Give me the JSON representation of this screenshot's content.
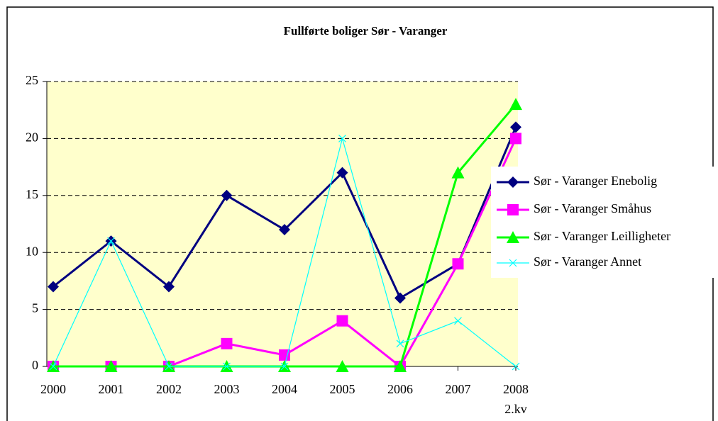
{
  "chart_data": {
    "type": "line",
    "title": "Fullførte boliger Sør - Varanger",
    "categories": [
      "2000",
      "2001",
      "2002",
      "2003",
      "2004",
      "2005",
      "2006",
      "2007",
      "2008\n2.kv"
    ],
    "series": [
      {
        "name": "Sør - Varanger Enebolig",
        "color": "#000080",
        "marker": "diamond",
        "values": [
          7,
          11,
          7,
          15,
          12,
          17,
          6,
          9,
          21
        ]
      },
      {
        "name": "Sør - Varanger Småhus",
        "color": "#ff00ff",
        "marker": "square",
        "values": [
          0,
          0,
          0,
          2,
          1,
          4,
          0,
          9,
          20
        ]
      },
      {
        "name": "Sør - Varanger Leilligheter",
        "color": "#00ff00",
        "marker": "triangle",
        "values": [
          0,
          0,
          0,
          0,
          0,
          0,
          0,
          17,
          23
        ]
      },
      {
        "name": "Sør - Varanger Annet",
        "color": "#00ffff",
        "marker": "x",
        "values": [
          0,
          11,
          0,
          0,
          0,
          20,
          2,
          4,
          0
        ]
      }
    ],
    "ylim": [
      0,
      25
    ],
    "yticks": [
      0,
      5,
      10,
      15,
      20,
      25
    ],
    "grid": true,
    "legend": "right"
  }
}
